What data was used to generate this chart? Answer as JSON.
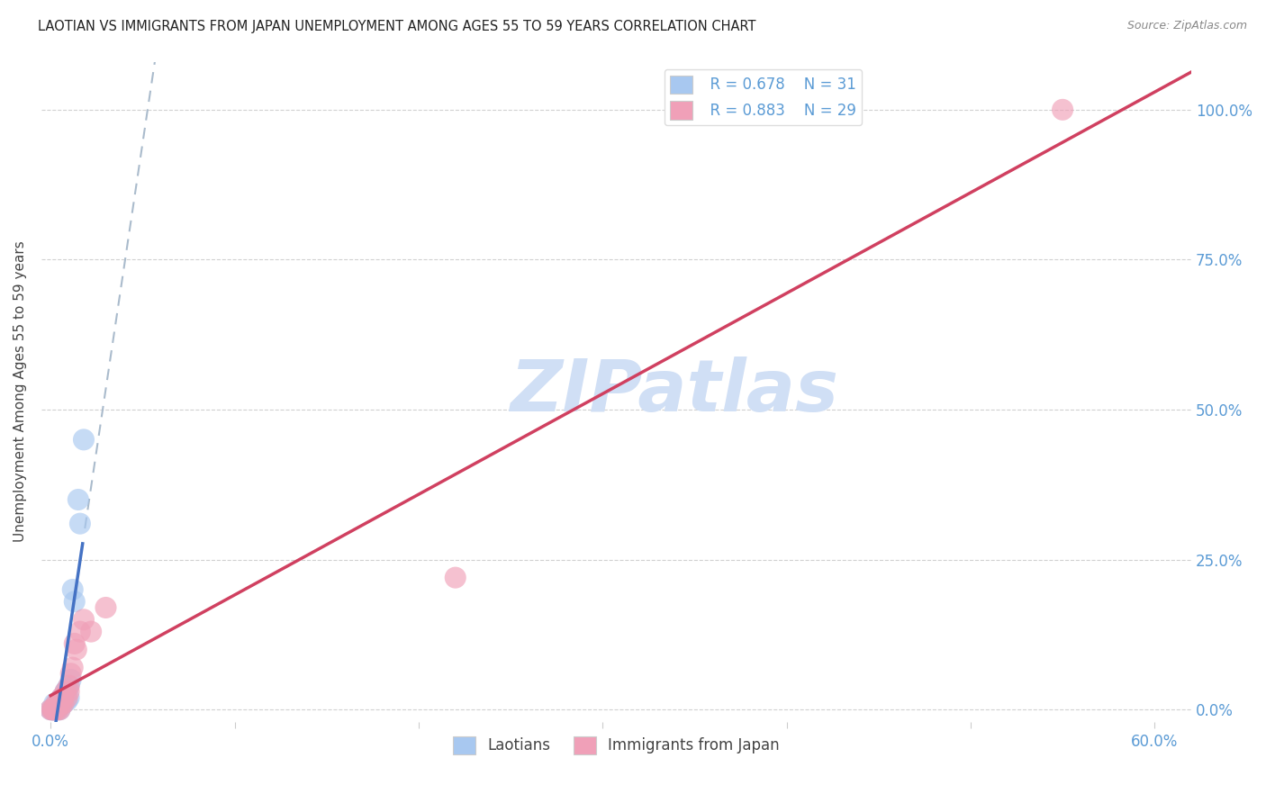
{
  "title": "LAOTIAN VS IMMIGRANTS FROM JAPAN UNEMPLOYMENT AMONG AGES 55 TO 59 YEARS CORRELATION CHART",
  "source": "Source: ZipAtlas.com",
  "ylabel": "Unemployment Among Ages 55 to 59 years",
  "ylim": [
    -0.02,
    1.08
  ],
  "xlim": [
    -0.005,
    0.62
  ],
  "legend_r1": "R = 0.678",
  "legend_n1": "N = 31",
  "legend_r2": "R = 0.883",
  "legend_n2": "N = 29",
  "color_laotian": "#A8C8F0",
  "color_japan": "#F0A0B8",
  "color_laotian_line": "#4472C4",
  "color_japan_line": "#D04060",
  "color_tick": "#5B9BD5",
  "watermark_text": "ZIPatlas",
  "watermark_color": "#D0DFF5",
  "laotian_x": [
    0.0,
    0.001,
    0.001,
    0.002,
    0.002,
    0.002,
    0.003,
    0.003,
    0.003,
    0.004,
    0.004,
    0.004,
    0.005,
    0.005,
    0.005,
    0.006,
    0.006,
    0.007,
    0.007,
    0.008,
    0.008,
    0.009,
    0.009,
    0.01,
    0.01,
    0.011,
    0.012,
    0.013,
    0.015,
    0.016,
    0.018
  ],
  "laotian_y": [
    0.0,
    0.0,
    0.0,
    0.0,
    0.0,
    0.01,
    0.0,
    0.005,
    0.01,
    0.0,
    0.005,
    0.01,
    0.0,
    0.005,
    0.015,
    0.01,
    0.02,
    0.01,
    0.02,
    0.015,
    0.03,
    0.015,
    0.035,
    0.02,
    0.04,
    0.05,
    0.2,
    0.18,
    0.35,
    0.31,
    0.45
  ],
  "japan_x": [
    0.0,
    0.001,
    0.001,
    0.002,
    0.002,
    0.003,
    0.003,
    0.004,
    0.004,
    0.005,
    0.005,
    0.006,
    0.006,
    0.007,
    0.007,
    0.008,
    0.009,
    0.01,
    0.01,
    0.011,
    0.012,
    0.013,
    0.014,
    0.016,
    0.018,
    0.022,
    0.03,
    0.22,
    0.55
  ],
  "japan_y": [
    0.0,
    0.0,
    0.0,
    0.0,
    0.0,
    0.0,
    0.01,
    0.0,
    0.01,
    0.0,
    0.015,
    0.01,
    0.02,
    0.01,
    0.02,
    0.03,
    0.02,
    0.03,
    0.04,
    0.06,
    0.07,
    0.11,
    0.1,
    0.13,
    0.15,
    0.13,
    0.17,
    0.22,
    1.0
  ],
  "background_color": "#FFFFFF",
  "grid_color": "#CCCCCC"
}
